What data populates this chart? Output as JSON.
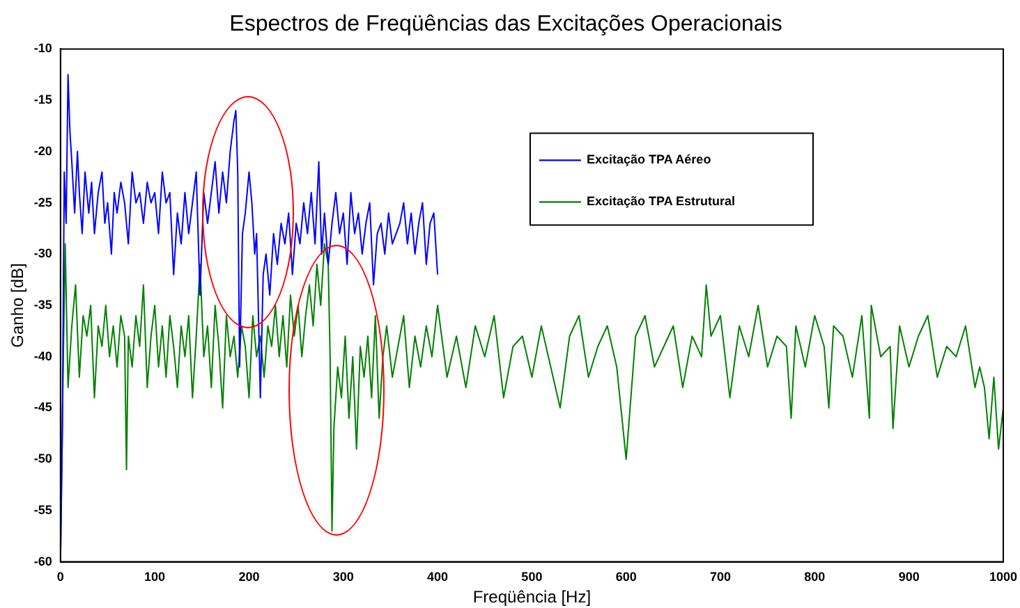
{
  "chart_data": {
    "type": "line",
    "title": "Espectros de Freqüências das Excitações Operacionais",
    "xlabel": "Freqüência [Hz]",
    "ylabel": "Ganho [dB]",
    "xlim": [
      0,
      1000
    ],
    "xticks": [
      0,
      100,
      200,
      300,
      400,
      500,
      600,
      700,
      800,
      900,
      1000
    ],
    "ylim": [
      -60,
      -10
    ],
    "yticks": [
      -60,
      -55,
      -50,
      -45,
      -40,
      -35,
      -30,
      -25,
      -20,
      -15,
      -10
    ],
    "grid": false,
    "legend": "top right",
    "marker": "none",
    "line_style": "solid",
    "series": [
      {
        "name": "Excitação TPA Aéreo",
        "color": "#0000ff",
        "x": [
          0,
          2,
          4,
          6,
          8,
          10,
          12,
          15,
          18,
          20,
          23,
          26,
          30,
          33,
          36,
          40,
          44,
          47,
          50,
          54,
          57,
          60,
          64,
          68,
          72,
          76,
          80,
          84,
          88,
          92,
          96,
          100,
          104,
          108,
          112,
          116,
          120,
          124,
          128,
          132,
          136,
          140,
          144,
          148,
          152,
          156,
          160,
          164,
          168,
          172,
          176,
          180,
          184,
          186,
          188,
          190,
          193,
          196,
          200,
          203,
          206,
          208,
          210,
          212,
          215,
          218,
          222,
          226,
          230,
          234,
          238,
          242,
          246,
          250,
          254,
          258,
          262,
          266,
          270,
          274,
          277,
          280,
          284,
          288,
          292,
          296,
          300,
          304,
          308,
          312,
          316,
          320,
          324,
          328,
          332,
          336,
          340,
          344,
          348,
          352,
          356,
          360,
          364,
          368,
          372,
          376,
          380,
          384,
          388,
          392,
          396,
          400
        ],
        "values": [
          -60,
          -47,
          -22,
          -27,
          -12.5,
          -18,
          -21,
          -26,
          -20,
          -24,
          -28,
          -22,
          -26,
          -23,
          -28,
          -24,
          -22,
          -27,
          -25,
          -30,
          -24,
          -26,
          -23,
          -25,
          -29,
          -22,
          -25,
          -24,
          -27,
          -23,
          -25,
          -24,
          -28,
          -22,
          -25,
          -24,
          -32,
          -26,
          -29,
          -24,
          -28,
          -25,
          -22,
          -34,
          -24,
          -27,
          -24,
          -21,
          -26,
          -22,
          -25,
          -20,
          -17,
          -16,
          -22,
          -41,
          -28,
          -26,
          -22,
          -25,
          -30,
          -28,
          -36,
          -44,
          -32,
          -30,
          -34,
          -28,
          -31,
          -27,
          -29,
          -26,
          -32,
          -27,
          -29,
          -25,
          -28,
          -24,
          -29,
          -21,
          -30,
          -26,
          -31,
          -27,
          -24,
          -28,
          -26,
          -31,
          -24,
          -28,
          -26,
          -30,
          -27,
          -25,
          -33,
          -28,
          -27,
          -30,
          -26,
          -29,
          -28,
          -27,
          -25,
          -29,
          -26,
          -30,
          -27,
          -25,
          -31,
          -27,
          -26,
          -32
        ]
      },
      {
        "name": "Excitação TPA Estrutural",
        "color": "#008000",
        "x": [
          0,
          3,
          5,
          8,
          12,
          16,
          20,
          24,
          28,
          32,
          36,
          40,
          44,
          48,
          52,
          56,
          60,
          64,
          68,
          70,
          72,
          76,
          80,
          84,
          88,
          92,
          96,
          100,
          104,
          108,
          112,
          116,
          120,
          124,
          128,
          132,
          136,
          140,
          144,
          148,
          152,
          156,
          160,
          164,
          168,
          172,
          176,
          180,
          184,
          188,
          192,
          196,
          200,
          204,
          208,
          212,
          216,
          220,
          224,
          228,
          232,
          236,
          240,
          244,
          248,
          252,
          256,
          260,
          264,
          268,
          272,
          276,
          280,
          284,
          286,
          288,
          290,
          294,
          298,
          302,
          306,
          310,
          314,
          318,
          322,
          326,
          330,
          334,
          338,
          342,
          346,
          352,
          358,
          364,
          370,
          376,
          382,
          388,
          394,
          400,
          410,
          420,
          430,
          440,
          450,
          460,
          470,
          480,
          490,
          500,
          510,
          520,
          530,
          540,
          550,
          560,
          570,
          580,
          590,
          600,
          610,
          620,
          630,
          640,
          650,
          660,
          670,
          680,
          685,
          690,
          700,
          710,
          720,
          730,
          740,
          750,
          760,
          770,
          775,
          780,
          790,
          800,
          810,
          815,
          820,
          830,
          840,
          850,
          858,
          860,
          870,
          880,
          883,
          890,
          900,
          910,
          920,
          930,
          940,
          950,
          960,
          970,
          975,
          980,
          985,
          990,
          995,
          1000
        ],
        "values": [
          -60,
          -40,
          -29,
          -43,
          -37,
          -33,
          -42,
          -36,
          -38,
          -35,
          -44,
          -37,
          -39,
          -35,
          -40,
          -37,
          -41,
          -36,
          -38,
          -51,
          -38,
          -41,
          -36,
          -39,
          -33,
          -43,
          -38,
          -35,
          -41,
          -37,
          -42,
          -36,
          -39,
          -43,
          -37,
          -40,
          -36,
          -44,
          -38,
          -31,
          -40,
          -37,
          -43,
          -35,
          -39,
          -45,
          -36,
          -40,
          -38,
          -42,
          -37,
          -39,
          -44,
          -36,
          -40,
          -38,
          -42,
          -37,
          -39,
          -35,
          -40,
          -36,
          -41,
          -34,
          -38,
          -35,
          -40,
          -36,
          -33,
          -37,
          -31,
          -35,
          -29,
          -31,
          -40,
          -57,
          -47,
          -41,
          -44,
          -38,
          -46,
          -40,
          -49,
          -39,
          -42,
          -38,
          -44,
          -36,
          -46,
          -40,
          -37,
          -42,
          -39,
          -36,
          -43,
          -38,
          -41,
          -37,
          -40,
          -35,
          -42,
          -38,
          -43,
          -37,
          -40,
          -36,
          -44,
          -39,
          -38,
          -42,
          -37,
          -41,
          -45,
          -38,
          -36,
          -42,
          -39,
          -37,
          -41,
          -50,
          -38,
          -36,
          -41,
          -39,
          -37,
          -43,
          -38,
          -40,
          -33,
          -38,
          -36,
          -44,
          -37,
          -40,
          -35,
          -41,
          -38,
          -39,
          -46,
          -37,
          -41,
          -36,
          -39,
          -45,
          -37,
          -38,
          -42,
          -36,
          -46,
          -35,
          -40,
          -39,
          -47,
          -37,
          -41,
          -38,
          -36,
          -42,
          -39,
          -40,
          -37,
          -43,
          -41,
          -43,
          -48,
          -42,
          -49,
          -45
        ]
      }
    ]
  }
}
